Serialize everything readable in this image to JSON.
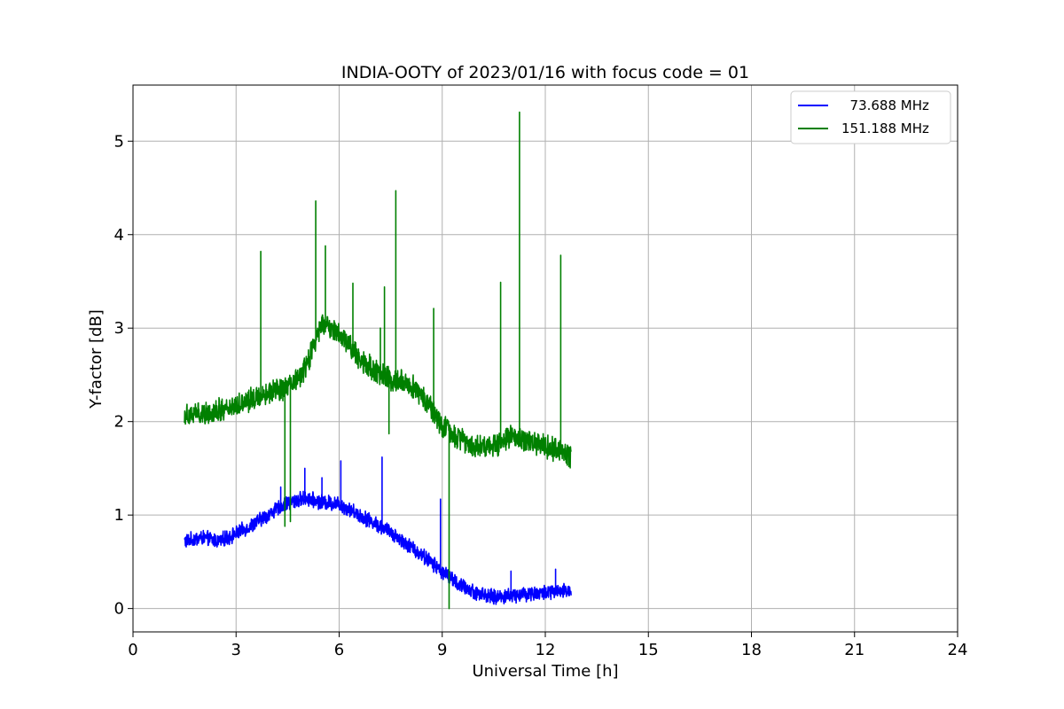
{
  "chart_data": {
    "type": "line",
    "title": "INDIA-OOTY of 2023/01/16 with focus code = 01",
    "xlabel": "Universal Time [h]",
    "ylabel": "Y-factor [dB]",
    "xlim": [
      0,
      24
    ],
    "ylim": [
      -0.25,
      5.6
    ],
    "xticks": [
      0,
      3,
      6,
      9,
      12,
      15,
      18,
      21,
      24
    ],
    "yticks": [
      0,
      1,
      2,
      3,
      4,
      5
    ],
    "grid": true,
    "legend": "top-right",
    "series": [
      {
        "name": "  73.688 MHz",
        "color": "#0000ff",
        "x": [
          1.5,
          2.0,
          2.5,
          3.0,
          3.5,
          4.0,
          4.5,
          5.0,
          5.5,
          6.0,
          6.5,
          7.0,
          7.5,
          8.0,
          8.5,
          9.0,
          9.5,
          10.0,
          10.5,
          11.0,
          11.5,
          12.0,
          12.5,
          12.75
        ],
        "y": [
          0.72,
          0.76,
          0.72,
          0.8,
          0.9,
          1.02,
          1.13,
          1.18,
          1.14,
          1.12,
          1.02,
          0.92,
          0.82,
          0.68,
          0.55,
          0.4,
          0.25,
          0.17,
          0.12,
          0.14,
          0.16,
          0.17,
          0.18,
          0.2
        ],
        "noise": 0.07,
        "spikes": [
          [
            4.3,
            1.3
          ],
          [
            5.0,
            1.5
          ],
          [
            5.5,
            1.4
          ],
          [
            6.05,
            1.58
          ],
          [
            7.25,
            1.62
          ],
          [
            8.95,
            1.17
          ],
          [
            11.0,
            0.4
          ],
          [
            12.3,
            0.42
          ]
        ]
      },
      {
        "name": "151.188 MHz",
        "color": "#008000",
        "x": [
          1.5,
          2.0,
          2.5,
          3.0,
          3.5,
          4.0,
          4.5,
          5.0,
          5.5,
          6.0,
          6.5,
          7.0,
          7.5,
          8.0,
          8.5,
          9.0,
          9.5,
          10.0,
          10.5,
          11.0,
          11.5,
          12.0,
          12.5,
          12.75
        ],
        "y": [
          2.08,
          2.08,
          2.12,
          2.18,
          2.25,
          2.32,
          2.35,
          2.55,
          3.05,
          2.95,
          2.72,
          2.55,
          2.45,
          2.42,
          2.25,
          1.95,
          1.82,
          1.73,
          1.75,
          1.83,
          1.78,
          1.73,
          1.68,
          1.62
        ],
        "noise": 0.11,
        "spikes": [
          [
            3.72,
            3.82
          ],
          [
            5.32,
            4.36
          ],
          [
            5.6,
            3.88
          ],
          [
            6.4,
            3.48
          ],
          [
            7.2,
            3.0
          ],
          [
            7.32,
            3.44
          ],
          [
            7.65,
            4.47
          ],
          [
            8.75,
            3.21
          ],
          [
            10.7,
            3.49
          ],
          [
            11.25,
            5.31
          ],
          [
            12.45,
            3.78
          ]
        ],
        "dips": [
          [
            4.42,
            0.88
          ],
          [
            4.58,
            0.93
          ],
          [
            7.45,
            1.87
          ],
          [
            9.2,
            0.0
          ]
        ]
      }
    ]
  }
}
